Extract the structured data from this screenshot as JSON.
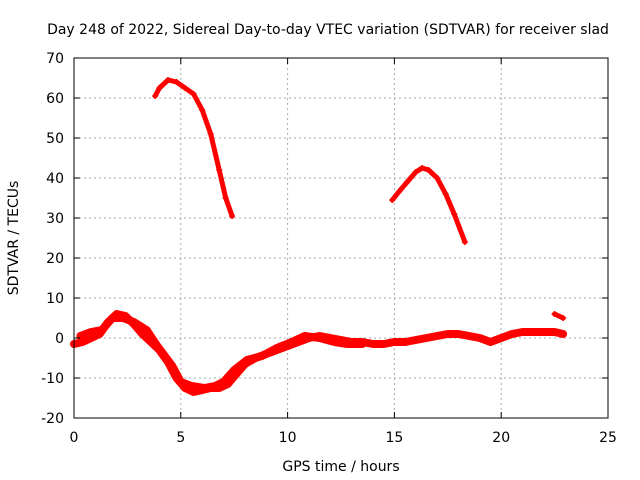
{
  "chart_data": {
    "type": "scatter",
    "title": "Day 248 of 2022, Sidereal Day-to-day VTEC variation (SDTVAR) for receiver slad",
    "xlabel": "GPS time / hours",
    "ylabel": "SDTVAR / TECUs",
    "xlim": [
      0,
      25
    ],
    "ylim": [
      -20,
      70
    ],
    "xticks": [
      0,
      5,
      10,
      15,
      20,
      25
    ],
    "yticks": [
      -20,
      -10,
      0,
      10,
      20,
      30,
      40,
      50,
      60,
      70
    ],
    "grid": true,
    "color": "#ff0000",
    "series": [
      {
        "name": "near-zero satellites",
        "points": [
          [
            0,
            -1.5
          ],
          [
            0.4,
            -1
          ],
          [
            0.8,
            0
          ],
          [
            1.2,
            1
          ],
          [
            1.6,
            4
          ],
          [
            2.0,
            6
          ],
          [
            2.4,
            5.5
          ],
          [
            2.8,
            3.5
          ],
          [
            3.2,
            1
          ],
          [
            3.6,
            -1
          ],
          [
            4.0,
            -3
          ],
          [
            4.4,
            -6
          ],
          [
            4.8,
            -10
          ],
          [
            5.2,
            -12.5
          ],
          [
            5.6,
            -13.5
          ],
          [
            6.0,
            -13
          ],
          [
            6.4,
            -12.5
          ],
          [
            6.8,
            -12.5
          ],
          [
            7.2,
            -11.5
          ],
          [
            7.6,
            -9
          ],
          [
            8.0,
            -6.5
          ],
          [
            8.5,
            -5
          ],
          [
            9.0,
            -4
          ],
          [
            9.5,
            -3
          ],
          [
            10.0,
            -2
          ],
          [
            10.5,
            -1
          ],
          [
            11.0,
            0
          ],
          [
            11.5,
            0.5
          ],
          [
            12.0,
            0
          ],
          [
            12.5,
            -0.5
          ],
          [
            13.0,
            -1
          ],
          [
            13.5,
            -1
          ],
          [
            14.0,
            -1.5
          ],
          [
            14.5,
            -1.5
          ],
          [
            15.0,
            -1
          ],
          [
            15.5,
            -1
          ],
          [
            16.0,
            -0.5
          ],
          [
            16.5,
            0
          ],
          [
            17.0,
            0.5
          ],
          [
            17.5,
            1
          ],
          [
            18.0,
            1
          ],
          [
            18.5,
            0.5
          ],
          [
            19.0,
            0
          ],
          [
            19.5,
            -1
          ],
          [
            20.0,
            0
          ],
          [
            20.5,
            1
          ],
          [
            21.0,
            1.5
          ],
          [
            21.5,
            1.5
          ],
          [
            22.0,
            1.5
          ],
          [
            22.5,
            1.5
          ],
          [
            22.9,
            1
          ]
        ]
      },
      {
        "name": "near-zero overlap",
        "points": [
          [
            0.3,
            0.5
          ],
          [
            0.8,
            1.5
          ],
          [
            1.3,
            2
          ],
          [
            1.8,
            5
          ],
          [
            2.3,
            5
          ],
          [
            2.8,
            4
          ],
          [
            3.4,
            2
          ],
          [
            3.9,
            -2
          ],
          [
            4.6,
            -7
          ],
          [
            5.0,
            -11
          ],
          [
            5.5,
            -12
          ],
          [
            6.1,
            -12.5
          ],
          [
            6.6,
            -12
          ],
          [
            7.0,
            -11
          ],
          [
            7.5,
            -8
          ],
          [
            8.1,
            -5.5
          ],
          [
            8.8,
            -4.5
          ],
          [
            9.5,
            -2.5
          ],
          [
            10.2,
            -1
          ],
          [
            10.8,
            0.5
          ],
          [
            11.5,
            0
          ],
          [
            12.2,
            -1
          ],
          [
            12.8,
            -1.5
          ],
          [
            13.5,
            -1.5
          ]
        ]
      },
      {
        "name": "right-end segment",
        "points": [
          [
            22.5,
            6
          ],
          [
            22.9,
            5
          ]
        ]
      },
      {
        "name": "high arc 1",
        "points": [
          [
            3.8,
            60.5
          ],
          [
            4.0,
            62.5
          ],
          [
            4.4,
            64.5
          ],
          [
            4.8,
            64
          ],
          [
            5.2,
            62.5
          ],
          [
            5.6,
            61
          ],
          [
            6.0,
            57
          ],
          [
            6.4,
            51
          ],
          [
            6.8,
            42
          ],
          [
            7.1,
            35
          ],
          [
            7.4,
            30.5
          ]
        ]
      },
      {
        "name": "high arc 2",
        "points": [
          [
            14.9,
            34.5
          ],
          [
            15.2,
            36.5
          ],
          [
            15.6,
            39
          ],
          [
            16.0,
            41.5
          ],
          [
            16.3,
            42.5
          ],
          [
            16.6,
            42
          ],
          [
            17.0,
            40
          ],
          [
            17.4,
            36
          ],
          [
            17.8,
            31
          ],
          [
            18.3,
            24
          ]
        ]
      }
    ]
  }
}
